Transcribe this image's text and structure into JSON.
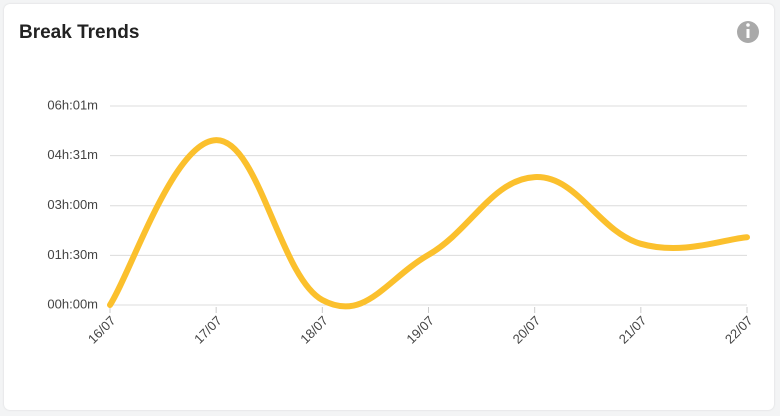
{
  "chart_data": {
    "type": "line",
    "title": "Break Trends",
    "categories": [
      "16/07",
      "17/07",
      "18/07",
      "19/07",
      "20/07",
      "21/07",
      "22/07"
    ],
    "values": [
      0,
      299,
      9,
      91,
      232,
      111,
      123
    ],
    "color": "#fbc02d",
    "ylim": [
      0,
      361
    ],
    "yticks": [
      {
        "value": 0,
        "label": "00h:00m"
      },
      {
        "value": 90,
        "label": "01h:30m"
      },
      {
        "value": 180,
        "label": "03h:00m"
      },
      {
        "value": 271,
        "label": "04h:31m"
      },
      {
        "value": 361,
        "label": "06h:01m"
      }
    ],
    "grid": true
  }
}
